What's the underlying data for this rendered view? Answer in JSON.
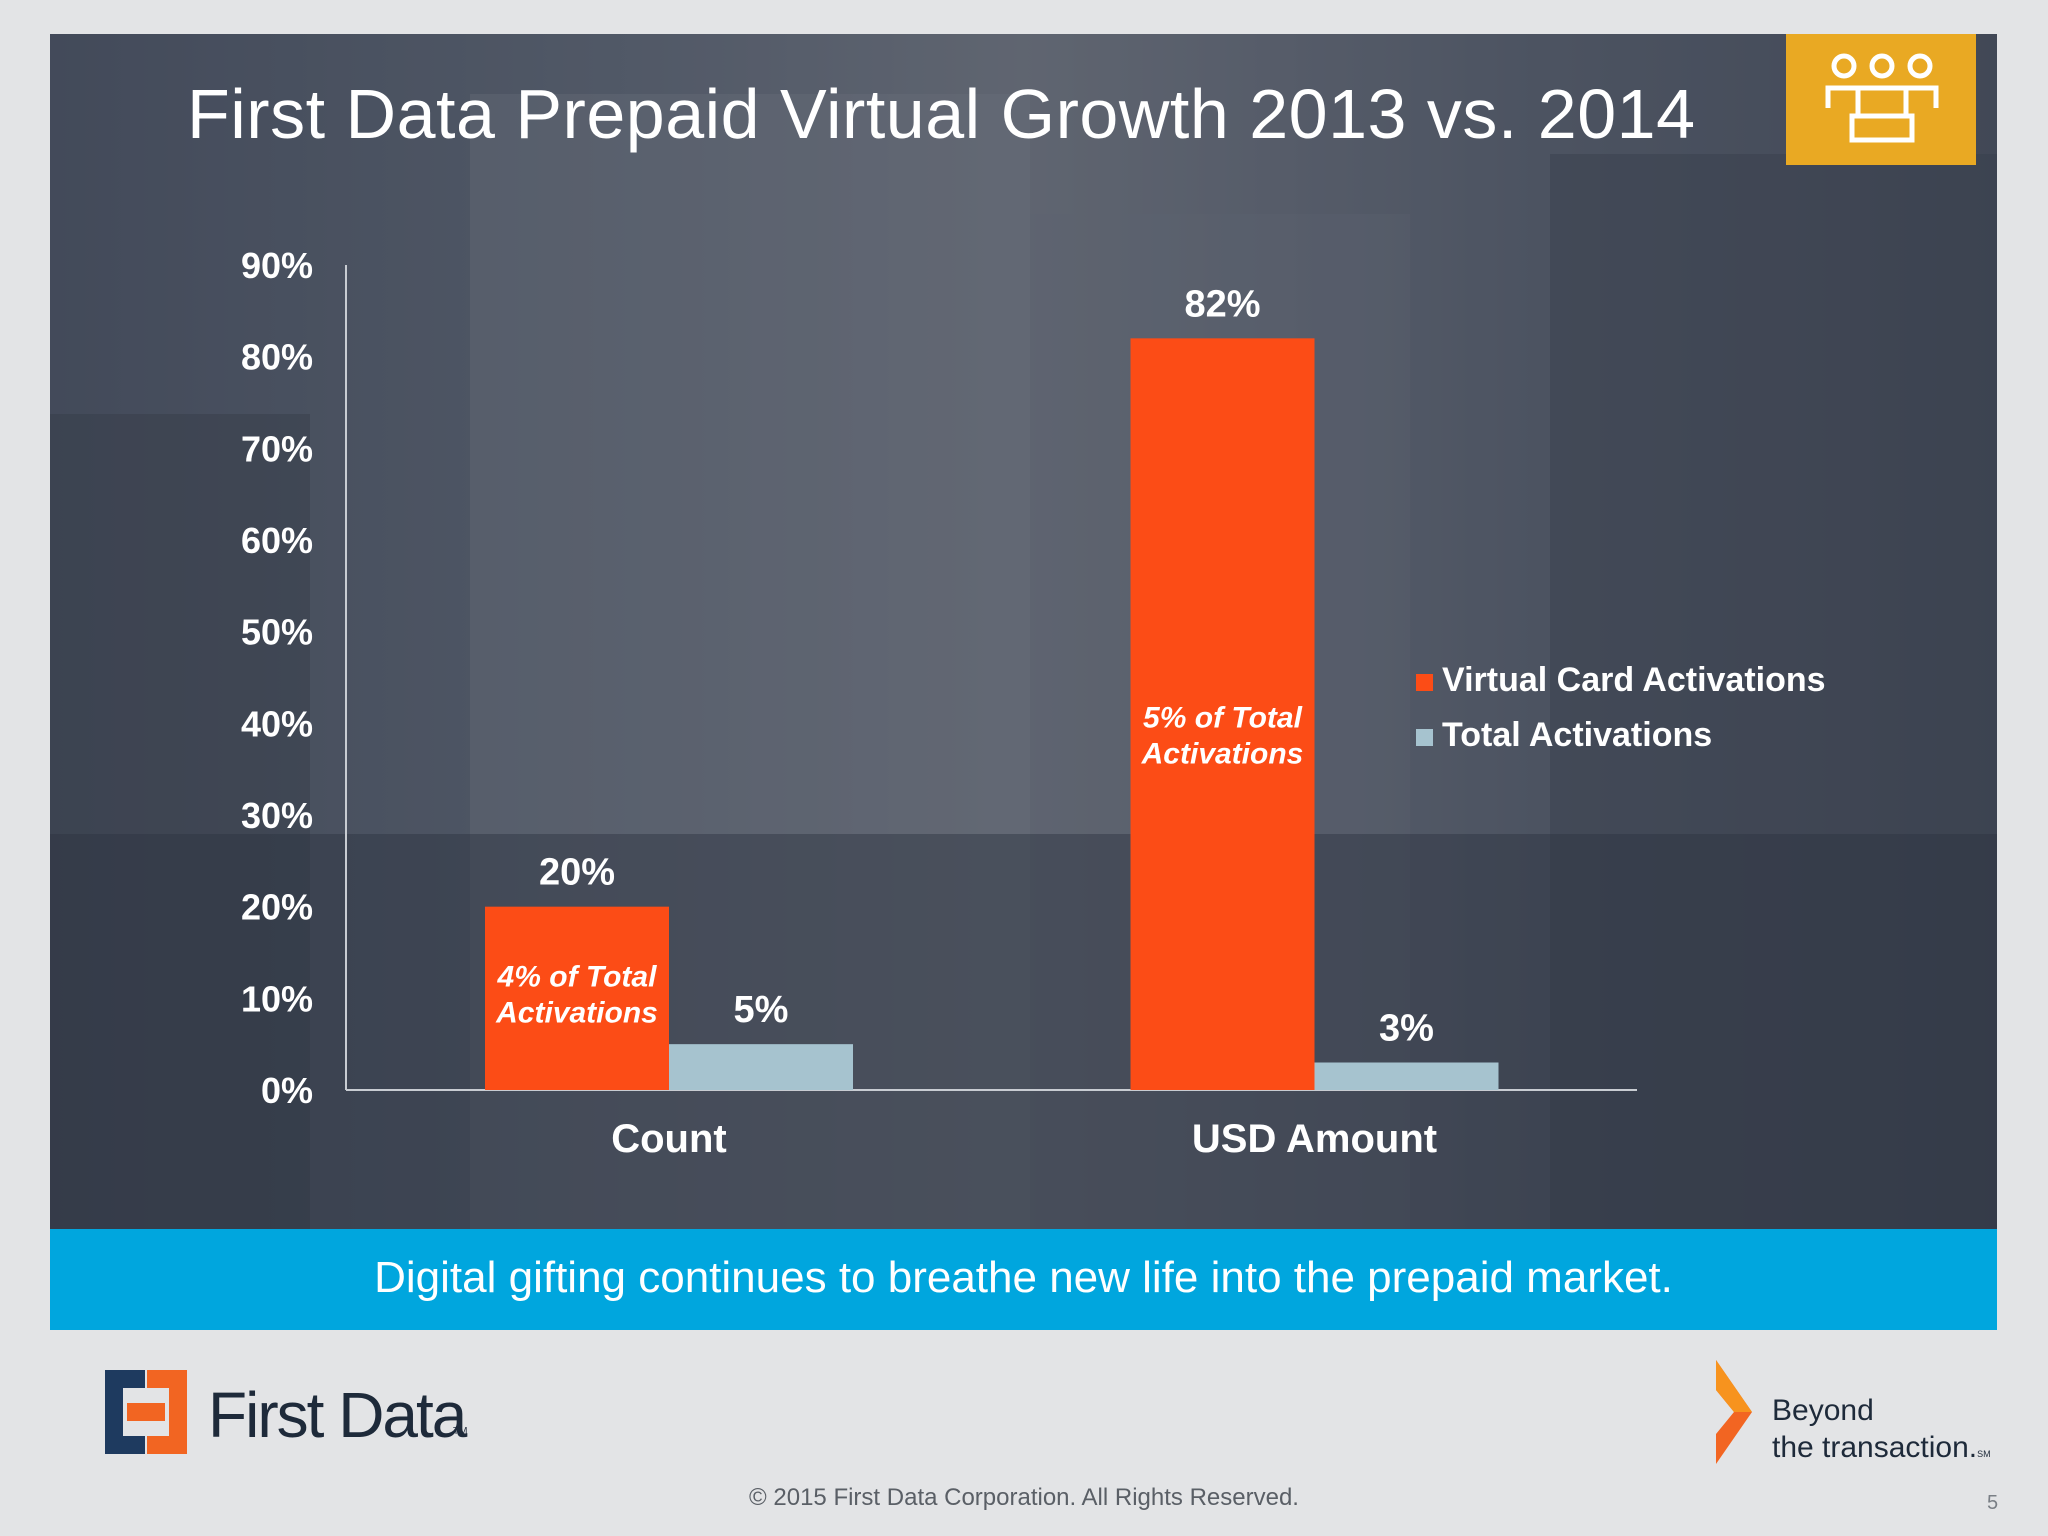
{
  "slide": {
    "title": "First Data Prepaid Virtual Growth 2013 vs. 2014",
    "banner": "Digital gifting continues to breathe new life into the prepaid market.",
    "brand_name": "First Data",
    "brand_tm": "TM",
    "tagline_line1": "Beyond",
    "tagline_line2": "the transaction.",
    "tagline_mark": "SM",
    "copyright": "© 2015 First Data Corporation. All Rights Reserved.",
    "page_number": "5",
    "icon": "people-group-icon",
    "colors": {
      "accent_orange": "#fc4c16",
      "series_light": "#a6c3cf",
      "icon_box": "#e9a923",
      "banner": "#00a6de",
      "brand_navy": "#1e3a5f",
      "brand_orange": "#f26522"
    }
  },
  "chart_data": {
    "type": "bar",
    "categories": [
      "Count",
      "USD Amount"
    ],
    "series": [
      {
        "name": "Virtual Card Activations",
        "values": [
          20,
          82
        ],
        "labels": [
          "20%",
          "82%"
        ],
        "color": "#fc4c16"
      },
      {
        "name": "Total Activations",
        "values": [
          5,
          3
        ],
        "labels": [
          "5%",
          "3%"
        ],
        "color": "#a6c3cf"
      }
    ],
    "annotations": [
      {
        "category": "Count",
        "series": "Virtual Card Activations",
        "lines": [
          "4% of Total",
          "Activations"
        ]
      },
      {
        "category": "USD Amount",
        "series": "Virtual Card Activations",
        "lines": [
          "5% of Total",
          "Activations"
        ]
      }
    ],
    "ylim": [
      0,
      90
    ],
    "yticks": [
      "0%",
      "10%",
      "20%",
      "30%",
      "40%",
      "50%",
      "60%",
      "70%",
      "80%",
      "90%"
    ],
    "grid": false,
    "legend_position": "right"
  }
}
